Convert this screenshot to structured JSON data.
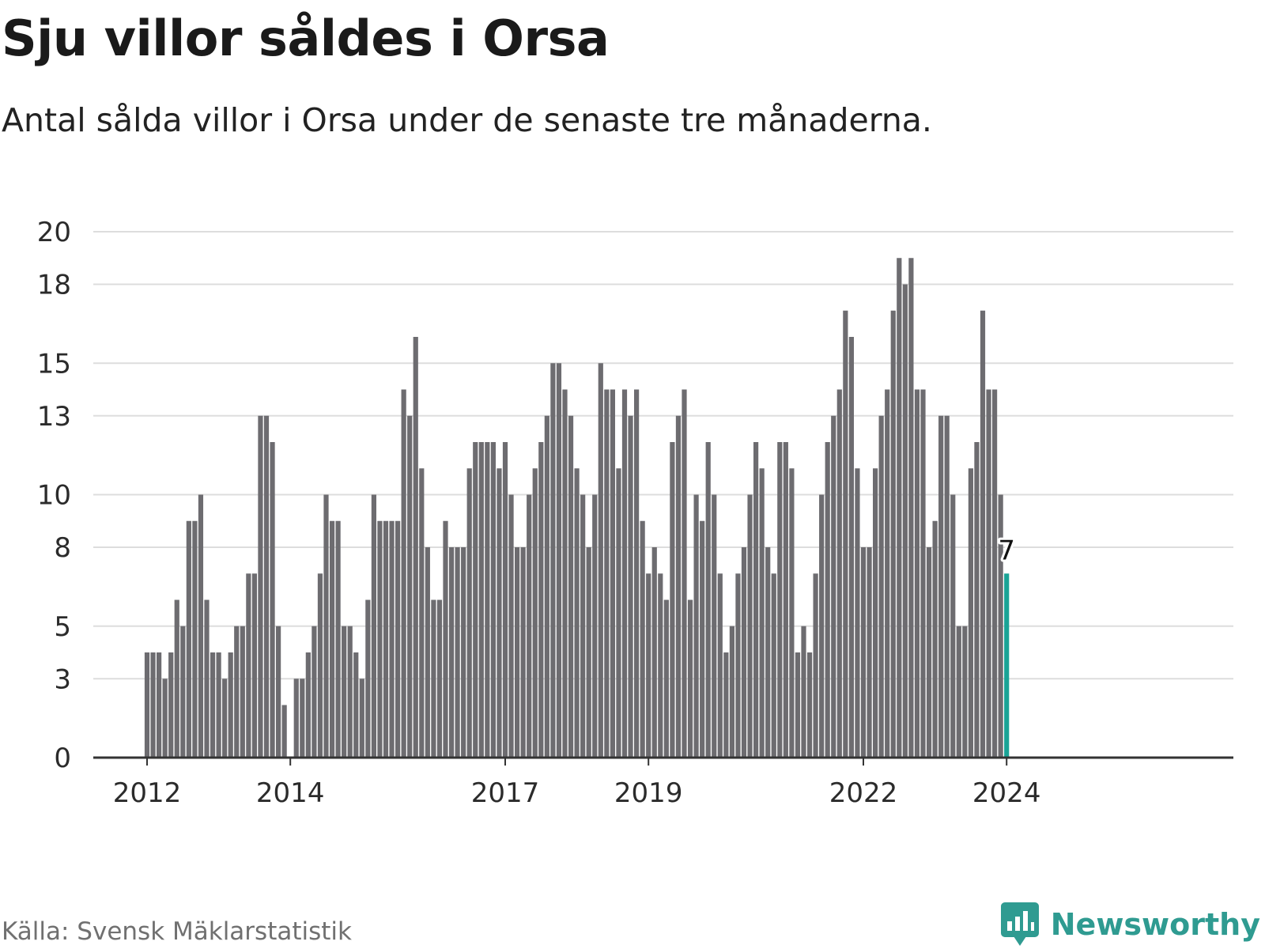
{
  "header": {
    "title": "Sju villor såldes i Orsa",
    "subtitle": "Antal sålda villor i Orsa under de senaste tre månaderna."
  },
  "footer": {
    "source": "Källa: Svensk Mäklarstatistik",
    "brand": "Newsworthy",
    "brand_icon": "newsworthy-logo-icon"
  },
  "colors": {
    "bar": "#6d6c70",
    "highlight": "#1aa396",
    "grid": "#dddddd",
    "axis": "#333333",
    "brand": "#2f9b91"
  },
  "chart_data": {
    "type": "bar",
    "title": "Sju villor såldes i Orsa",
    "ylabel": "",
    "xlabel": "",
    "ylim": [
      0,
      20
    ],
    "yticks": [
      0,
      3,
      5,
      8,
      10,
      13,
      15,
      18,
      20
    ],
    "ytick_labels": [
      "0",
      "3",
      "5",
      "8",
      "10",
      "13",
      "15",
      "18",
      "20"
    ],
    "first_period": "2012-01",
    "xticks": [
      {
        "label": "2012",
        "index": 0
      },
      {
        "label": "2014",
        "index": 24
      },
      {
        "label": "2017",
        "index": 60
      },
      {
        "label": "2019",
        "index": 84
      },
      {
        "label": "2022",
        "index": 120
      },
      {
        "label": "2024",
        "index": 144
      }
    ],
    "values": [
      4,
      4,
      4,
      3,
      4,
      6,
      5,
      9,
      9,
      10,
      6,
      4,
      4,
      3,
      4,
      5,
      5,
      7,
      7,
      13,
      13,
      12,
      5,
      2,
      0,
      3,
      3,
      4,
      5,
      7,
      10,
      9,
      9,
      5,
      5,
      4,
      3,
      6,
      10,
      9,
      9,
      9,
      9,
      14,
      13,
      16,
      11,
      8,
      6,
      6,
      9,
      8,
      8,
      8,
      11,
      12,
      12,
      12,
      12,
      11,
      12,
      10,
      8,
      8,
      10,
      11,
      12,
      13,
      15,
      15,
      14,
      13,
      11,
      10,
      8,
      10,
      15,
      14,
      14,
      11,
      14,
      13,
      14,
      9,
      7,
      8,
      7,
      6,
      12,
      13,
      14,
      6,
      10,
      9,
      12,
      10,
      7,
      4,
      5,
      7,
      8,
      10,
      12,
      11,
      8,
      7,
      12,
      12,
      11,
      4,
      5,
      4,
      7,
      10,
      12,
      13,
      14,
      17,
      16,
      11,
      8,
      8,
      11,
      13,
      14,
      17,
      19,
      18,
      19,
      14,
      14,
      8,
      9,
      13,
      13,
      10,
      5,
      5,
      11,
      12,
      17,
      14,
      14,
      10,
      7
    ],
    "highlight_index": 144,
    "highlight_label": "7"
  }
}
